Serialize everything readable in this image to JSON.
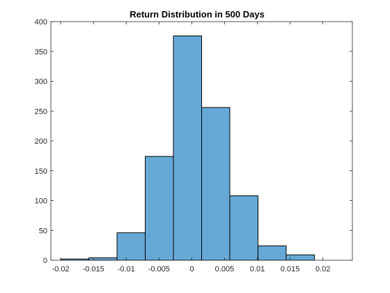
{
  "chart_data": {
    "type": "bar",
    "title": "Return Distribution in 500 Days",
    "xlabel": "",
    "ylabel": "",
    "xlim": [
      -0.0215,
      0.0245
    ],
    "ylim": [
      0,
      400
    ],
    "x_ticks": [
      -0.02,
      -0.015,
      -0.01,
      -0.005,
      0,
      0.005,
      0.01,
      0.015,
      0.02
    ],
    "x_tick_labels": [
      "-0.02",
      "-0.015",
      "-0.01",
      "-0.005",
      "0",
      "0.005",
      "0.01",
      "0.015",
      "0.02"
    ],
    "y_ticks": [
      0,
      50,
      100,
      150,
      200,
      250,
      300,
      350,
      400
    ],
    "y_tick_labels": [
      "0",
      "50",
      "100",
      "150",
      "200",
      "250",
      "300",
      "350",
      "400"
    ],
    "bin_edges": [
      -0.02,
      -0.0157,
      -0.0114,
      -0.0071,
      -0.0028,
      0.0015,
      0.0058,
      0.0101,
      0.0144,
      0.0187
    ],
    "counts": [
      2,
      4,
      46,
      174,
      376,
      256,
      108,
      24,
      9
    ],
    "bar_color": "#66a9d7",
    "edge_color": "#000000",
    "grid": false
  }
}
